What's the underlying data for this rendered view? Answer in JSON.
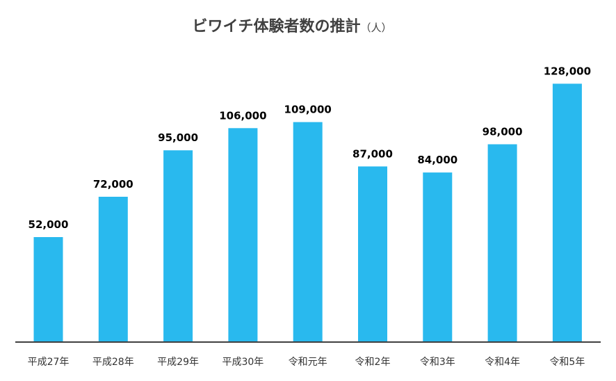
{
  "chart_data": {
    "type": "bar",
    "title": "ビワイチ体験者数の推計",
    "title_unit": "（人）",
    "categories": [
      "平成27年",
      "平成28年",
      "平成29年",
      "平成30年",
      "令和元年",
      "令和2年",
      "令和3年",
      "令和4年",
      "令和5年"
    ],
    "values": [
      52000,
      72000,
      95000,
      106000,
      109000,
      87000,
      84000,
      98000,
      128000
    ],
    "value_labels": [
      "52,000",
      "72,000",
      "95,000",
      "106,000",
      "109,000",
      "87,000",
      "84,000",
      "98,000",
      "128,000"
    ],
    "xlabel": "",
    "ylabel": "",
    "ylim": [
      0,
      130000
    ],
    "grid": false,
    "bar_color": "#29B9EE",
    "axis_color": "#404040",
    "title_color": "#404040",
    "label_color": "#000000"
  }
}
